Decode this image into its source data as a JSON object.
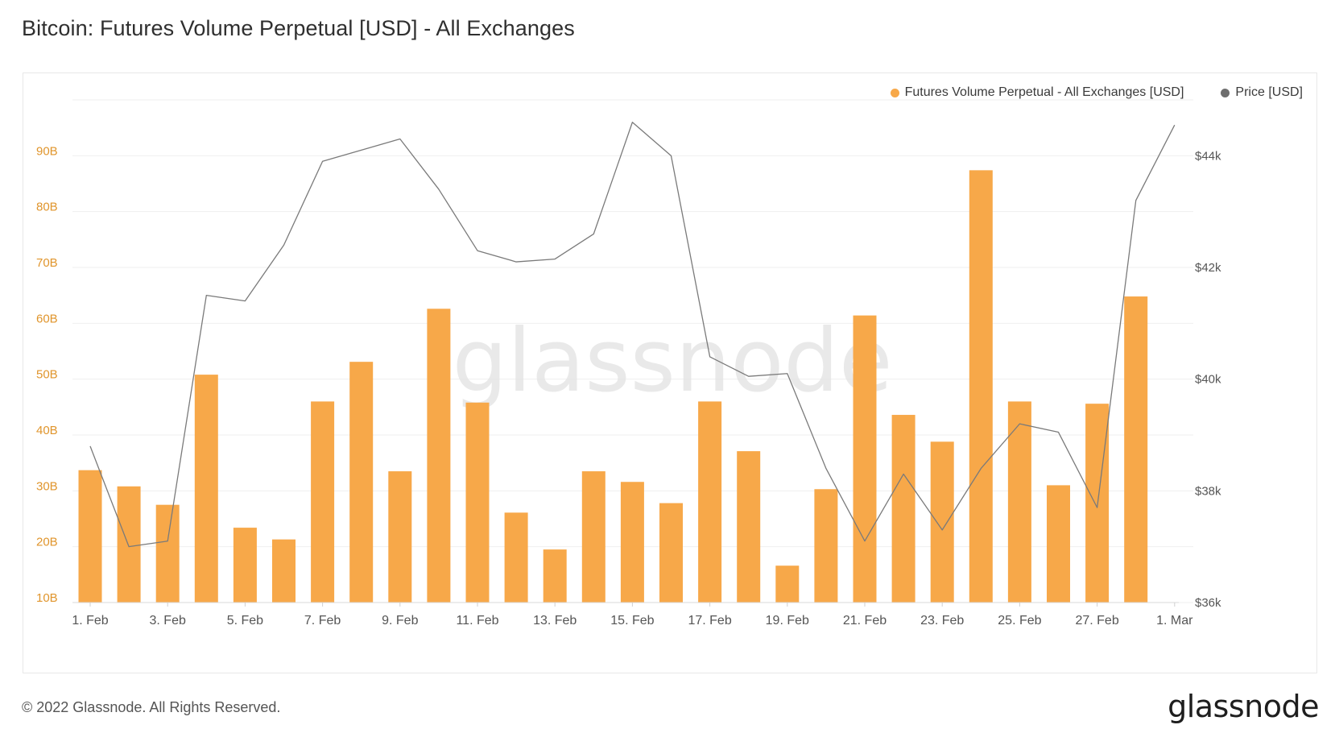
{
  "title": "Bitcoin: Futures Volume Perpetual [USD] - All Exchanges",
  "legend": {
    "volume_label": "Futures Volume Perpetual - All Exchanges [USD]",
    "price_label": "Price [USD]"
  },
  "watermark": "glassnode",
  "footer": "© 2022 Glassnode. All Rights Reserved.",
  "brand": "glassnode",
  "colors": {
    "bar": "#f7a849",
    "price_line": "#7a7a7a",
    "left_axis_text": "#e0952c",
    "right_axis_text": "#555555",
    "grid": "#efefef",
    "price_dot": "#6e6e6e"
  },
  "chart_data": {
    "type": "bar",
    "categories": [
      "1. Feb",
      "2. Feb",
      "3. Feb",
      "4. Feb",
      "5. Feb",
      "6. Feb",
      "7. Feb",
      "8. Feb",
      "9. Feb",
      "10. Feb",
      "11. Feb",
      "12. Feb",
      "13. Feb",
      "14. Feb",
      "15. Feb",
      "16. Feb",
      "17. Feb",
      "18. Feb",
      "19. Feb",
      "20. Feb",
      "21. Feb",
      "22. Feb",
      "23. Feb",
      "24. Feb",
      "25. Feb",
      "26. Feb",
      "27. Feb",
      "28. Feb",
      "1. Mar"
    ],
    "x_tick_labels": [
      "1. Feb",
      "3. Feb",
      "5. Feb",
      "7. Feb",
      "9. Feb",
      "11. Feb",
      "13. Feb",
      "15. Feb",
      "17. Feb",
      "19. Feb",
      "21. Feb",
      "23. Feb",
      "25. Feb",
      "27. Feb",
      "1. Mar"
    ],
    "series": [
      {
        "name": "Futures Volume Perpetual - All Exchanges [USD]",
        "axis": "left",
        "unit": "B",
        "values": [
          33.7,
          30.8,
          27.5,
          50.8,
          23.4,
          21.3,
          46.0,
          53.1,
          33.5,
          62.6,
          45.8,
          26.1,
          19.5,
          33.5,
          31.6,
          27.8,
          46.0,
          37.1,
          16.6,
          30.3,
          61.4,
          43.6,
          38.8,
          87.4,
          46.0,
          31.0,
          45.6,
          64.8,
          null
        ]
      },
      {
        "name": "Price [USD]",
        "axis": "right",
        "type": "line",
        "values": [
          38800,
          37000,
          37100,
          41500,
          41400,
          42400,
          43900,
          44100,
          44300,
          43400,
          42300,
          42100,
          42150,
          42600,
          44600,
          44000,
          40400,
          40050,
          40100,
          38400,
          37100,
          38300,
          37300,
          38400,
          39200,
          39050,
          37700,
          43200,
          44550
        ]
      }
    ],
    "y_left": {
      "ticks": [
        "10B",
        "20B",
        "30B",
        "40B",
        "50B",
        "60B",
        "70B",
        "80B",
        "90B"
      ],
      "range": [
        10,
        100
      ]
    },
    "y_right": {
      "ticks": [
        "$36k",
        "$38k",
        "$40k",
        "$42k",
        "$44k"
      ],
      "range": [
        36000,
        45000
      ]
    },
    "grid": true,
    "legend_position": "top-right"
  }
}
